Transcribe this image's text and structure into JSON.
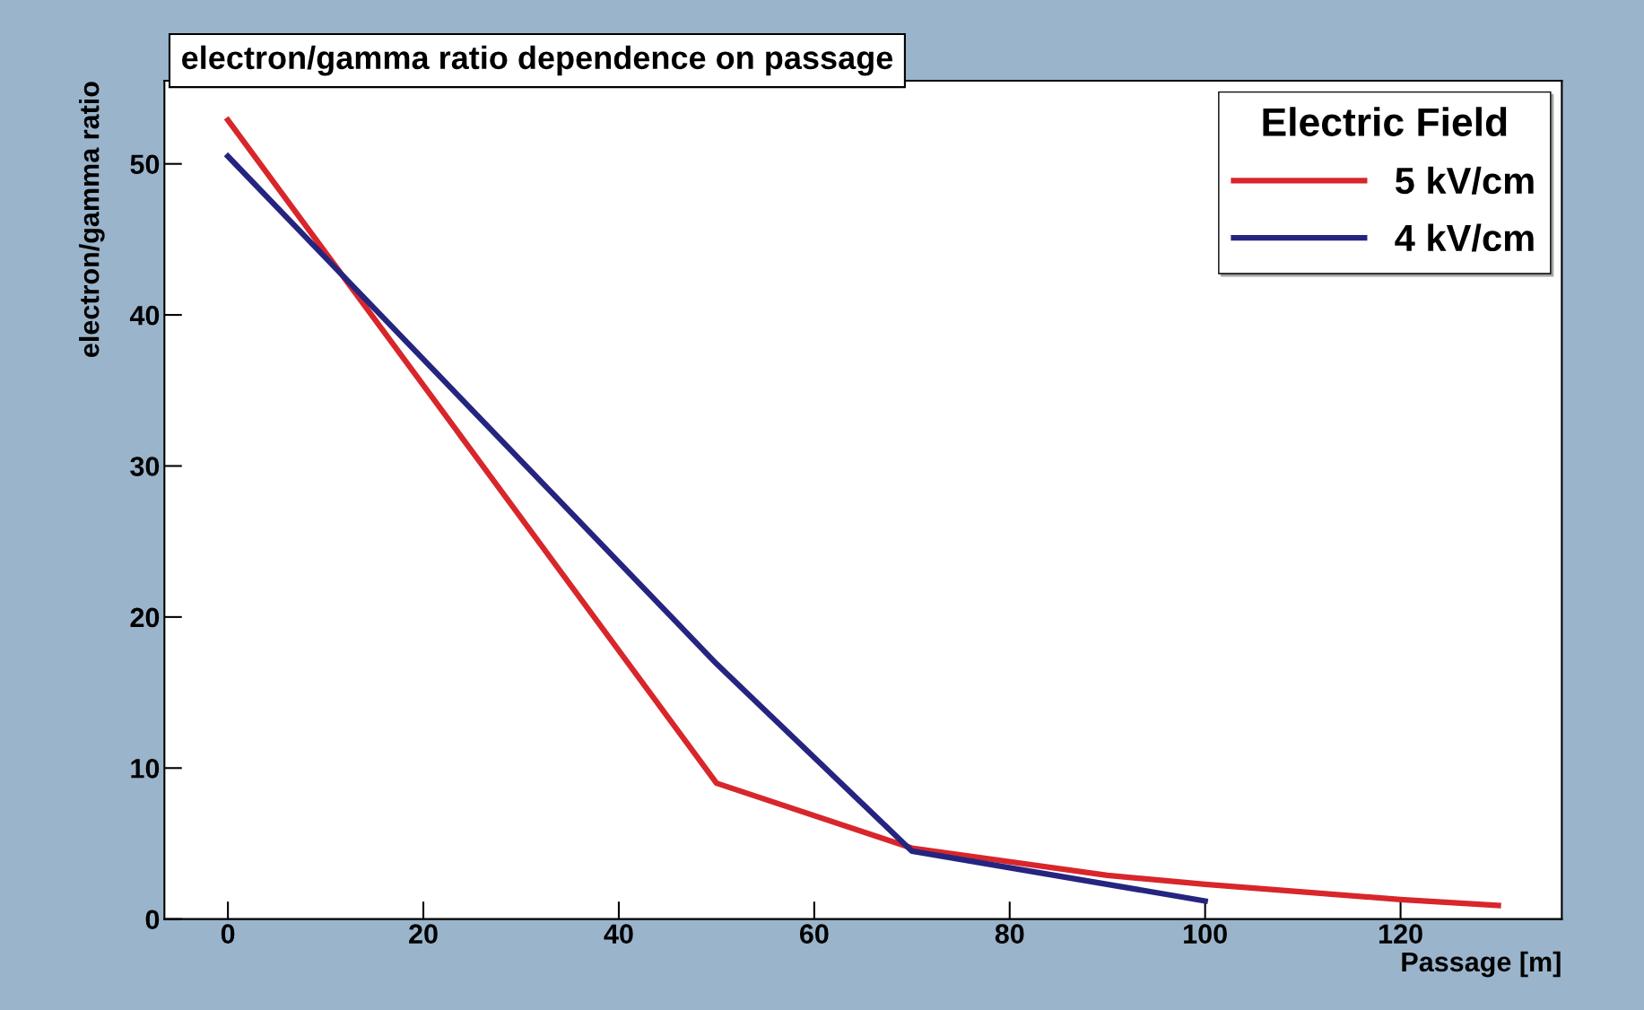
{
  "chart_data": {
    "type": "line",
    "title": "electron/gamma ratio dependence on passage",
    "xlabel": "Passage [m]",
    "ylabel": "electron/gamma ratio",
    "legend_title": "Electric Field",
    "legend": "top right",
    "grid": false,
    "marker": "none",
    "line_style": "solid",
    "xlim": [
      -6.5,
      136.5
    ],
    "ylim": [
      0,
      55.5
    ],
    "xticks": [
      0,
      20,
      40,
      60,
      80,
      100,
      120
    ],
    "yticks": [
      0,
      10,
      20,
      30,
      40,
      50
    ],
    "series": [
      {
        "name": "5 kV/cm",
        "color": "#d8262b",
        "x": [
          0,
          50,
          70,
          90,
          100,
          110,
          120,
          130
        ],
        "values": [
          52.9,
          9.0,
          4.7,
          2.9,
          2.3,
          1.8,
          1.3,
          0.9
        ]
      },
      {
        "name": "4 kV/cm",
        "color": "#252580",
        "x": [
          0,
          50,
          70,
          100
        ],
        "values": [
          50.5,
          16.9,
          4.5,
          1.2
        ]
      }
    ]
  }
}
